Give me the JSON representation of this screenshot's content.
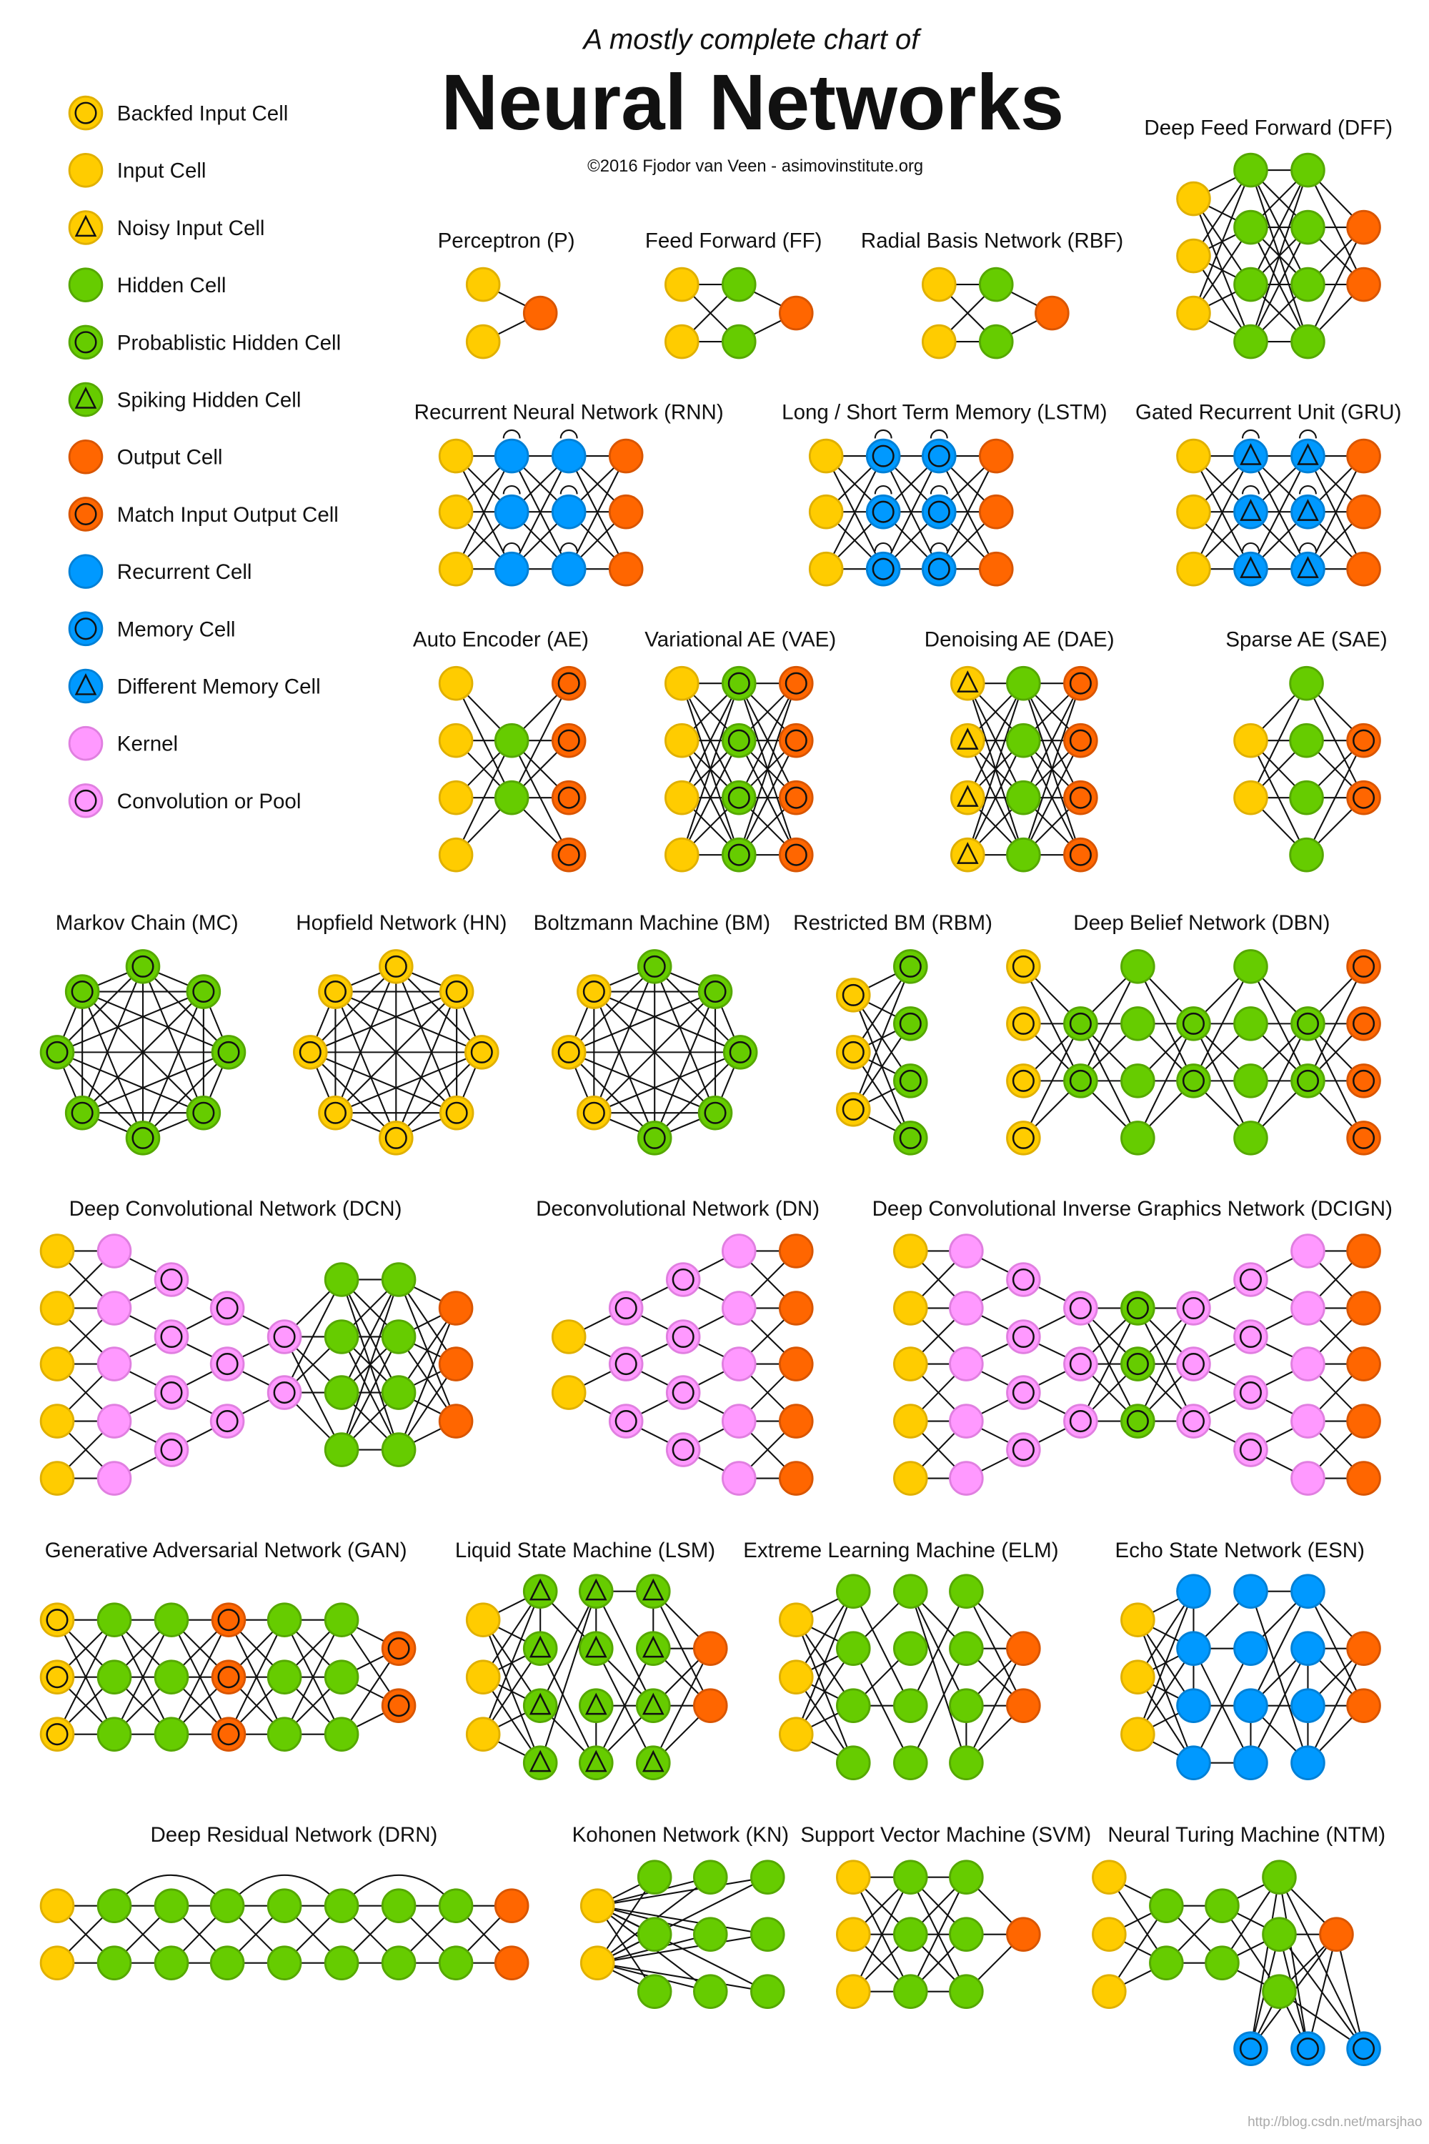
{
  "header": {
    "subtitle": "A mostly complete chart of",
    "title": "Neural Networks",
    "credit": "©2016 Fjodor van Veen - asimovinstitute.org"
  },
  "watermark": "http://blog.csdn.net/marsjhao",
  "colors": {
    "input": "#FFCC00",
    "hidden": "#66CC00",
    "output": "#FF6600",
    "recurrent": "#0099FF",
    "kernel": "#FF99FF"
  },
  "cell_types": {
    "bi": {
      "label": "Backfed Input Cell",
      "color": "input",
      "symbol": "circle"
    },
    "in": {
      "label": "Input Cell",
      "color": "input",
      "symbol": "none"
    },
    "ni": {
      "label": "Noisy Input Cell",
      "color": "input",
      "symbol": "triangle"
    },
    "hi": {
      "label": "Hidden Cell",
      "color": "hidden",
      "symbol": "none"
    },
    "ph": {
      "label": "Probablistic Hidden Cell",
      "color": "hidden",
      "symbol": "circle"
    },
    "sh": {
      "label": "Spiking Hidden Cell",
      "color": "hidden",
      "symbol": "triangle"
    },
    "out": {
      "label": "Output Cell",
      "color": "output",
      "symbol": "none"
    },
    "mo": {
      "label": "Match Input Output Cell",
      "color": "output",
      "symbol": "circle"
    },
    "rc": {
      "label": "Recurrent Cell",
      "color": "recurrent",
      "symbol": "none"
    },
    "mc": {
      "label": "Memory Cell",
      "color": "recurrent",
      "symbol": "circle"
    },
    "dm": {
      "label": "Different Memory Cell",
      "color": "recurrent",
      "symbol": "triangle"
    },
    "k": {
      "label": "Kernel",
      "color": "kernel",
      "symbol": "none"
    },
    "cp": {
      "label": "Convolution or Pool",
      "color": "kernel",
      "symbol": "circle"
    }
  },
  "legend_order": [
    "bi",
    "in",
    "ni",
    "hi",
    "ph",
    "sh",
    "out",
    "mo",
    "rc",
    "mc",
    "dm",
    "k",
    "cp"
  ],
  "networks": [
    {
      "name": "Perceptron (P)",
      "layers": [
        "in",
        "out"
      ]
    },
    {
      "name": "Feed Forward (FF)",
      "layers": [
        "in",
        "hi",
        "out"
      ]
    },
    {
      "name": "Radial Basis Network (RBF)",
      "layers": [
        "in",
        "hi",
        "out"
      ]
    },
    {
      "name": "Deep Feed Forward (DFF)",
      "layers": [
        "in",
        "hi",
        "hi",
        "out"
      ]
    },
    {
      "name": "Recurrent Neural Network (RNN)",
      "layers": [
        "in",
        "rc",
        "rc",
        "out"
      ]
    },
    {
      "name": "Long / Short Term Memory (LSTM)",
      "layers": [
        "in",
        "mc",
        "mc",
        "out"
      ]
    },
    {
      "name": "Gated Recurrent Unit (GRU)",
      "layers": [
        "in",
        "dm",
        "dm",
        "out"
      ]
    },
    {
      "name": "Auto Encoder (AE)",
      "layers": [
        "in",
        "hi",
        "mo"
      ]
    },
    {
      "name": "Variational AE (VAE)",
      "layers": [
        "in",
        "ph",
        "mo"
      ]
    },
    {
      "name": "Denoising AE (DAE)",
      "layers": [
        "ni",
        "hi",
        "mo"
      ]
    },
    {
      "name": "Sparse AE (SAE)",
      "layers": [
        "in",
        "hi",
        "mo"
      ]
    },
    {
      "name": "Markov Chain (MC)",
      "layers": [
        [
          "ph",
          "ph",
          "ph",
          "ph",
          "ph",
          "ph",
          "ph",
          "ph"
        ]
      ]
    },
    {
      "name": "Hopfield Network (HN)",
      "layers": [
        [
          "bi",
          "bi",
          "bi",
          "bi",
          "bi",
          "bi",
          "bi",
          "bi"
        ]
      ]
    },
    {
      "name": "Boltzmann Machine (BM)",
      "layers": [
        [
          "ph",
          "ph",
          "ph",
          "ph",
          "ph",
          "bi",
          "bi",
          "bi"
        ]
      ]
    },
    {
      "name": "Restricted BM (RBM)",
      "layers": [
        "bi",
        "ph"
      ]
    },
    {
      "name": "Deep Belief Network (DBN)",
      "layers": [
        "bi",
        "ph",
        "hi",
        "ph",
        "hi",
        "ph",
        "mo"
      ]
    },
    {
      "name": "Deep Convolutional Network (DCN)",
      "layers": [
        "in",
        "k",
        "cp",
        "cp",
        "cp",
        "hi",
        "hi",
        "out"
      ]
    },
    {
      "name": "Deconvolutional Network (DN)",
      "layers": [
        "in",
        "cp",
        "cp",
        "k",
        "out"
      ]
    },
    {
      "name": "Deep Convolutional Inverse Graphics Network (DCIGN)",
      "layers": [
        "in",
        "k",
        "cp",
        "cp",
        "ph",
        "cp",
        "cp",
        "k",
        "out"
      ]
    },
    {
      "name": "Generative Adversarial Network (GAN)",
      "layers": [
        "bi",
        "hi",
        "hi",
        "mo",
        "hi",
        "hi",
        "mo"
      ]
    },
    {
      "name": "Liquid State Machine (LSM)",
      "layers": [
        "in",
        "sh",
        "sh",
        "sh",
        "out"
      ]
    },
    {
      "name": "Extreme Learning Machine (ELM)",
      "layers": [
        "in",
        "hi",
        "hi",
        "hi",
        "out"
      ]
    },
    {
      "name": "Echo State Network (ESN)",
      "layers": [
        "in",
        "rc",
        "rc",
        "rc",
        "out"
      ]
    },
    {
      "name": "Deep Residual Network (DRN)",
      "layers": [
        "in",
        "hi",
        "hi",
        "hi",
        "hi",
        "hi",
        "hi",
        "hi",
        "out"
      ]
    },
    {
      "name": "Kohonen Network (KN)",
      "layers": [
        "in",
        "hi",
        "hi",
        "hi"
      ]
    },
    {
      "name": "Support Vector Machine (SVM)",
      "layers": [
        "in",
        "hi",
        "hi",
        "out"
      ]
    },
    {
      "name": "Neural Turing Machine (NTM)",
      "layers": [
        "in",
        "hi",
        "hi",
        "hi",
        "out",
        "mc"
      ]
    }
  ]
}
